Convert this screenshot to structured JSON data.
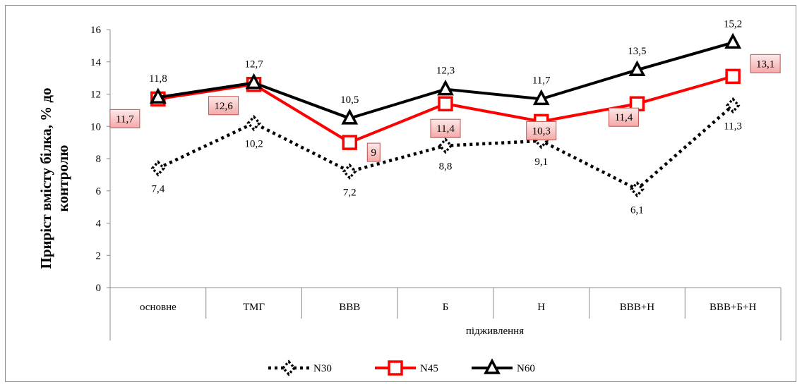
{
  "chart_data": {
    "type": "line",
    "title": "",
    "xlabel": "підживлення",
    "ylabel_line1": "Приріст вмісту білка, % до",
    "ylabel_line2": "контролю",
    "categories": [
      "основне",
      "ТМГ",
      "ВВВ",
      "Б",
      "Н",
      "ВВВ+Н",
      "ВВВ+Б+Н"
    ],
    "ylim": [
      0,
      16
    ],
    "yticks": [
      "0",
      "2",
      "4",
      "6",
      "8",
      "10",
      "12",
      "14",
      "16"
    ],
    "grid": "vertical category separators only",
    "legend": "bottom",
    "series": [
      {
        "name": "N30",
        "color": "#000000",
        "style": "dotted",
        "marker": "diamond",
        "values": [
          7.4,
          10.2,
          7.2,
          8.8,
          9.1,
          6.1,
          11.3
        ],
        "labels": [
          "7,4",
          "10,2",
          "7,2",
          "8,8",
          "9,1",
          "6,1",
          "11,3"
        ]
      },
      {
        "name": "N45",
        "color": "#ff0000",
        "style": "solid",
        "marker": "square",
        "values": [
          11.7,
          12.6,
          9,
          11.4,
          10.3,
          11.4,
          13.1
        ],
        "labels": [
          "11,7",
          "12,6",
          "9",
          "11,4",
          "10,3",
          "11,4",
          "13,1"
        ]
      },
      {
        "name": "N60",
        "color": "#000000",
        "style": "solid",
        "marker": "triangle",
        "values": [
          11.8,
          12.7,
          10.5,
          12.3,
          11.7,
          13.5,
          15.2
        ],
        "labels": [
          "11,8",
          "12,7",
          "10,5",
          "12,3",
          "11,7",
          "13,5",
          "15,2"
        ]
      }
    ]
  }
}
